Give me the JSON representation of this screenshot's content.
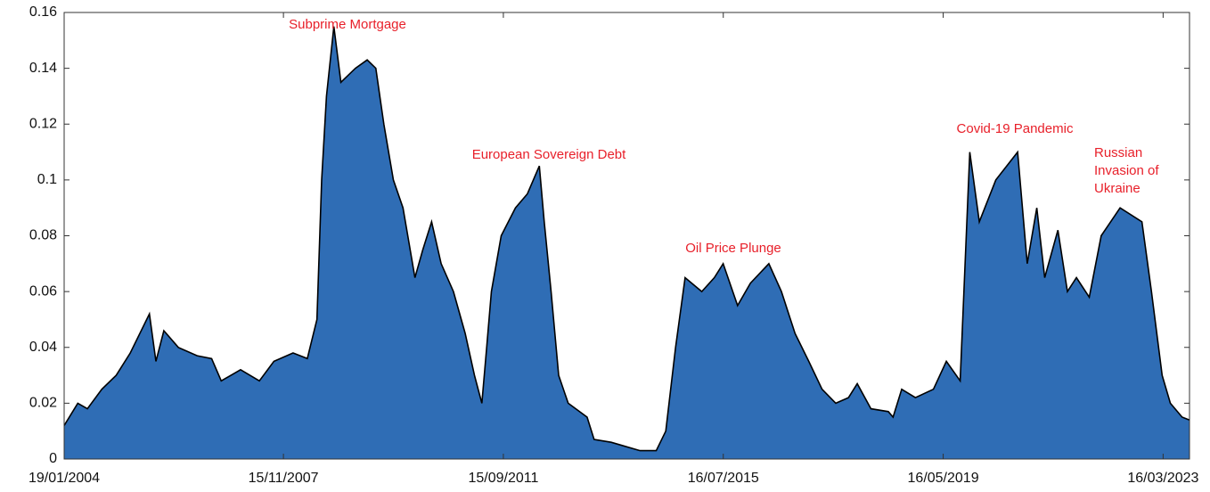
{
  "chart_data": {
    "type": "area",
    "x": [
      "2004-01-19",
      "2004-04-15",
      "2004-06-15",
      "2004-09-15",
      "2004-12-15",
      "2005-03-15",
      "2005-07-15",
      "2005-08-25",
      "2005-10-15",
      "2006-01-15",
      "2006-05-15",
      "2006-08-15",
      "2006-10-15",
      "2007-02-15",
      "2007-06-15",
      "2007-09-15",
      "2008-01-15",
      "2008-04-15",
      "2008-06-15",
      "2008-07-15",
      "2008-08-15",
      "2008-10-01",
      "2008-11-15",
      "2009-02-15",
      "2009-05-01",
      "2009-06-25",
      "2009-08-15",
      "2009-10-15",
      "2009-12-15",
      "2010-03-01",
      "2010-04-20",
      "2010-06-15",
      "2010-08-15",
      "2010-11-01",
      "2011-01-15",
      "2011-03-15",
      "2011-05-01",
      "2011-06-01",
      "2011-07-01",
      "2011-09-01",
      "2011-12-01",
      "2012-02-15",
      "2012-05-01",
      "2012-06-01",
      "2012-07-15",
      "2012-09-01",
      "2012-11-01",
      "2013-03-01",
      "2013-04-15",
      "2013-08-01",
      "2013-10-01",
      "2014-02-01",
      "2014-05-15",
      "2014-07-15",
      "2014-09-15",
      "2014-11-15",
      "2015-03-01",
      "2015-05-20",
      "2015-07-15",
      "2015-10-15",
      "2016-01-05",
      "2016-05-01",
      "2016-07-20",
      "2016-10-15",
      "2017-01-10",
      "2017-04-05",
      "2017-07-01",
      "2017-09-20",
      "2017-11-15",
      "2018-02-10",
      "2018-06-01",
      "2018-07-01",
      "2018-08-25",
      "2018-11-20",
      "2019-03-15",
      "2019-06-05",
      "2019-09-01",
      "2019-11-01",
      "2020-01-01",
      "2020-04-15",
      "2020-09-01",
      "2020-11-01",
      "2021-01-01",
      "2021-02-20",
      "2021-05-15",
      "2021-07-15",
      "2021-09-10",
      "2021-12-01",
      "2022-02-15",
      "2022-06-15",
      "2022-11-01",
      "2023-01-01",
      "2023-03-10",
      "2023-05-01",
      "2023-07-15",
      "2023-08-31"
    ],
    "values": [
      0.012,
      0.02,
      0.018,
      0.025,
      0.03,
      0.038,
      0.052,
      0.035,
      0.046,
      0.04,
      0.037,
      0.036,
      0.028,
      0.032,
      0.028,
      0.035,
      0.038,
      0.036,
      0.05,
      0.1,
      0.13,
      0.155,
      0.135,
      0.14,
      0.143,
      0.14,
      0.12,
      0.1,
      0.09,
      0.065,
      0.075,
      0.085,
      0.07,
      0.06,
      0.045,
      0.03,
      0.02,
      0.04,
      0.06,
      0.08,
      0.09,
      0.095,
      0.105,
      0.085,
      0.06,
      0.03,
      0.02,
      0.015,
      0.007,
      0.006,
      0.005,
      0.003,
      0.003,
      0.01,
      0.04,
      0.065,
      0.06,
      0.065,
      0.07,
      0.055,
      0.063,
      0.07,
      0.06,
      0.045,
      0.035,
      0.025,
      0.02,
      0.022,
      0.027,
      0.018,
      0.017,
      0.015,
      0.025,
      0.022,
      0.025,
      0.035,
      0.028,
      0.11,
      0.085,
      0.1,
      0.11,
      0.07,
      0.09,
      0.065,
      0.082,
      0.06,
      0.065,
      0.058,
      0.08,
      0.09,
      0.085,
      0.06,
      0.03,
      0.02,
      0.015,
      0.014
    ],
    "color": "#2f6db5",
    "line_color": "#000000",
    "xlim": [
      "2004-01-19",
      "2023-08-31"
    ],
    "xticks": [
      {
        "value": "2004-01-19",
        "label": "19/01/2004"
      },
      {
        "value": "2007-11-15",
        "label": "15/11/2007"
      },
      {
        "value": "2011-09-15",
        "label": "15/09/2011"
      },
      {
        "value": "2015-07-16",
        "label": "16/07/2015"
      },
      {
        "value": "2019-05-16",
        "label": "16/05/2019"
      },
      {
        "value": "2023-03-16",
        "label": "16/03/2023"
      }
    ],
    "ylim": [
      0,
      0.16
    ],
    "yticks": [
      0,
      0.02,
      0.04,
      0.06,
      0.08,
      0.1,
      0.12,
      0.14,
      0.16
    ],
    "annotations": [
      {
        "lines": [
          "Subprime Mortgage"
        ]
      },
      {
        "lines": [
          "European Sovereign Debt"
        ]
      },
      {
        "lines": [
          "Oil Price Plunge"
        ]
      },
      {
        "lines": [
          "Covid-19 Pandemic"
        ]
      },
      {
        "lines": [
          "Russian",
          "Invasion of",
          "Ukraine"
        ]
      }
    ]
  }
}
